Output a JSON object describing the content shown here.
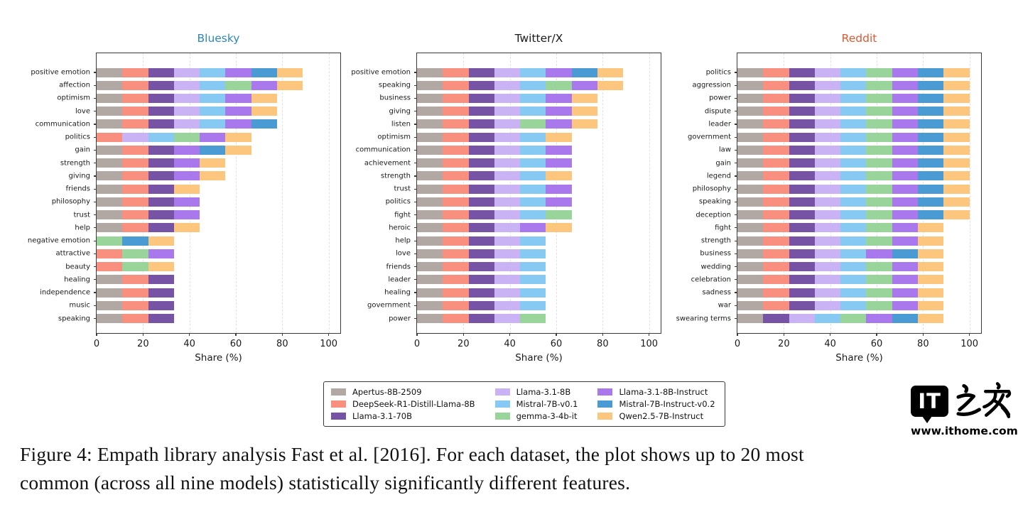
{
  "models": [
    {
      "name": "Apertus-8B-2509",
      "color": "#b2a8a3"
    },
    {
      "name": "DeepSeek-R1-Distill-Llama-8B",
      "color": "#f9907f"
    },
    {
      "name": "Llama-3.1-70B",
      "color": "#7753a6"
    },
    {
      "name": "Llama-3.1-8B",
      "color": "#c9b3f5"
    },
    {
      "name": "Mistral-7B-v0.1",
      "color": "#86c9f3"
    },
    {
      "name": "gemma-3-4b-it",
      "color": "#99d49b"
    },
    {
      "name": "Llama-3.1-8B-Instruct",
      "color": "#a978ec"
    },
    {
      "name": "Mistral-7B-Instruct-v0.2",
      "color": "#4a9ad4"
    },
    {
      "name": "Qwen2.5-7B-Instruct",
      "color": "#fcc67e"
    }
  ],
  "chart_data": [
    {
      "type": "bar",
      "orientation": "horizontal",
      "stacked": true,
      "title": "Bluesky",
      "title_color": "#2e86c1",
      "xlabel": "Share (%)",
      "xlim": [
        0,
        105
      ],
      "x_ticks": [
        0,
        20,
        40,
        60,
        80,
        100
      ],
      "grid": "dashed-vertical",
      "segment_share_pct": 11.11,
      "note": "each present model contributes an equal 1/9 (11.1%) share segment",
      "categories": [
        "positive emotion",
        "affection",
        "optimism",
        "love",
        "communication",
        "politics",
        "gain",
        "strength",
        "giving",
        "friends",
        "philosophy",
        "trust",
        "help",
        "negative emotion",
        "attractive",
        "beauty",
        "healing",
        "independence",
        "music",
        "speaking"
      ],
      "present_model_indices": [
        [
          0,
          1,
          2,
          3,
          4,
          6,
          7,
          8
        ],
        [
          0,
          1,
          2,
          3,
          4,
          5,
          6,
          8
        ],
        [
          0,
          1,
          2,
          3,
          4,
          6,
          8
        ],
        [
          0,
          1,
          2,
          3,
          4,
          6,
          8
        ],
        [
          0,
          1,
          2,
          3,
          4,
          6,
          7
        ],
        [
          1,
          3,
          4,
          5,
          6,
          8
        ],
        [
          0,
          1,
          2,
          6,
          7,
          8
        ],
        [
          0,
          1,
          2,
          6,
          8
        ],
        [
          0,
          1,
          2,
          6,
          8
        ],
        [
          0,
          1,
          2,
          8
        ],
        [
          0,
          1,
          2,
          6
        ],
        [
          0,
          1,
          2,
          6
        ],
        [
          0,
          1,
          2,
          8
        ],
        [
          5,
          7,
          8
        ],
        [
          1,
          5,
          6
        ],
        [
          1,
          5,
          8
        ],
        [
          0,
          1,
          2
        ],
        [
          0,
          1,
          2
        ],
        [
          0,
          1,
          2
        ],
        [
          0,
          1,
          2
        ]
      ]
    },
    {
      "type": "bar",
      "orientation": "horizontal",
      "stacked": true,
      "title": "Twitter/X",
      "title_color": "#1a1a1a",
      "xlabel": "Share (%)",
      "xlim": [
        0,
        105
      ],
      "x_ticks": [
        0,
        20,
        40,
        60,
        80,
        100
      ],
      "grid": "dashed-vertical",
      "segment_share_pct": 11.11,
      "categories": [
        "positive emotion",
        "speaking",
        "business",
        "giving",
        "listen",
        "optimism",
        "communication",
        "achievement",
        "strength",
        "trust",
        "politics",
        "fight",
        "heroic",
        "help",
        "love",
        "friends",
        "leader",
        "healing",
        "government",
        "power"
      ],
      "present_model_indices": [
        [
          0,
          1,
          2,
          3,
          4,
          6,
          7,
          8
        ],
        [
          0,
          1,
          2,
          3,
          4,
          5,
          6,
          8
        ],
        [
          0,
          1,
          2,
          3,
          4,
          6,
          8
        ],
        [
          0,
          1,
          2,
          3,
          4,
          6,
          8
        ],
        [
          0,
          1,
          2,
          3,
          5,
          6,
          8
        ],
        [
          0,
          1,
          2,
          3,
          4,
          8
        ],
        [
          0,
          1,
          2,
          3,
          4,
          6
        ],
        [
          0,
          1,
          2,
          3,
          4,
          6
        ],
        [
          0,
          1,
          2,
          3,
          4,
          8
        ],
        [
          0,
          1,
          2,
          3,
          4,
          6
        ],
        [
          0,
          1,
          2,
          3,
          4,
          6
        ],
        [
          0,
          1,
          2,
          3,
          4,
          5
        ],
        [
          0,
          1,
          2,
          3,
          6,
          8
        ],
        [
          0,
          1,
          2,
          3,
          4
        ],
        [
          0,
          1,
          2,
          3,
          4
        ],
        [
          0,
          1,
          2,
          3,
          4
        ],
        [
          0,
          1,
          2,
          3,
          4
        ],
        [
          0,
          1,
          2,
          3,
          4
        ],
        [
          0,
          1,
          2,
          3,
          4
        ],
        [
          0,
          1,
          2,
          3,
          5
        ]
      ]
    },
    {
      "type": "bar",
      "orientation": "horizontal",
      "stacked": true,
      "title": "Reddit",
      "title_color": "#e05832",
      "xlabel": "Share (%)",
      "xlim": [
        0,
        105
      ],
      "x_ticks": [
        0,
        20,
        40,
        60,
        80,
        100
      ],
      "grid": "dashed-vertical",
      "segment_share_pct": 11.11,
      "categories": [
        "politics",
        "aggression",
        "power",
        "dispute",
        "leader",
        "government",
        "law",
        "gain",
        "legend",
        "philosophy",
        "speaking",
        "deception",
        "fight",
        "strength",
        "business",
        "wedding",
        "celebration",
        "sadness",
        "war",
        "swearing terms"
      ],
      "present_model_indices": [
        [
          0,
          1,
          2,
          3,
          4,
          5,
          6,
          7,
          8
        ],
        [
          0,
          1,
          2,
          3,
          4,
          5,
          6,
          7,
          8
        ],
        [
          0,
          1,
          2,
          3,
          4,
          5,
          6,
          7,
          8
        ],
        [
          0,
          1,
          2,
          3,
          4,
          5,
          6,
          7,
          8
        ],
        [
          0,
          1,
          2,
          3,
          4,
          5,
          6,
          7,
          8
        ],
        [
          0,
          1,
          2,
          3,
          4,
          5,
          6,
          7,
          8
        ],
        [
          0,
          1,
          2,
          3,
          4,
          5,
          6,
          7,
          8
        ],
        [
          0,
          1,
          2,
          3,
          4,
          5,
          6,
          7,
          8
        ],
        [
          0,
          1,
          2,
          3,
          4,
          5,
          6,
          7,
          8
        ],
        [
          0,
          1,
          2,
          3,
          4,
          5,
          6,
          7,
          8
        ],
        [
          0,
          1,
          2,
          3,
          4,
          5,
          6,
          7,
          8
        ],
        [
          0,
          1,
          2,
          3,
          4,
          5,
          6,
          7,
          8
        ],
        [
          0,
          1,
          2,
          3,
          4,
          5,
          6,
          8
        ],
        [
          0,
          1,
          2,
          3,
          4,
          5,
          6,
          8
        ],
        [
          0,
          1,
          2,
          3,
          4,
          6,
          7,
          8
        ],
        [
          0,
          1,
          2,
          3,
          4,
          5,
          6,
          8
        ],
        [
          0,
          1,
          2,
          3,
          4,
          5,
          6,
          8
        ],
        [
          0,
          1,
          2,
          3,
          4,
          5,
          6,
          8
        ],
        [
          0,
          1,
          2,
          3,
          4,
          5,
          6,
          8
        ],
        [
          0,
          2,
          3,
          4,
          5,
          6,
          7,
          8
        ]
      ]
    }
  ],
  "legend": {
    "rows": 3,
    "columns": 3,
    "order": "column-major",
    "position": "below-charts"
  },
  "caption": {
    "line1": "Figure 4: Empath library analysis Fast et al. [2016]. For each dataset, the plot shows up to 20 most",
    "line2": "common (across all nine models) statistically significantly different features."
  },
  "watermark": {
    "logo_text": "IT",
    "logo_cjk": "之家",
    "site": "www.ithome.com"
  }
}
